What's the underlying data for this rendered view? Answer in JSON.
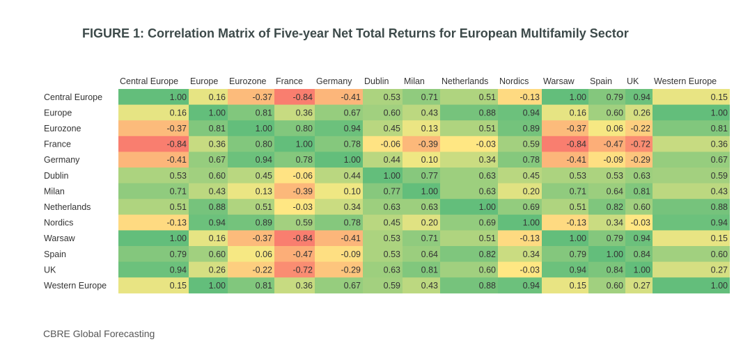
{
  "title": "FIGURE 1: Correlation Matrix of Five-year Net Total Returns for European Multifamily Sector",
  "source": "CBRE Global Forecasting",
  "chart_data": {
    "type": "heatmap",
    "title": "FIGURE 1: Correlation Matrix of Five-year Net Total Returns for European Multifamily Sector",
    "columns": [
      "Central Europe",
      "Europe",
      "Eurozone",
      "France",
      "Germany",
      "Dublin",
      "Milan",
      "Netherlands",
      "Nordics",
      "Warsaw",
      "Spain",
      "UK",
      "Western Europe"
    ],
    "rows": [
      "Central Europe",
      "Europe",
      "Eurozone",
      "France",
      "Germany",
      "Dublin",
      "Milan",
      "Netherlands",
      "Nordics",
      "Warsaw",
      "Spain",
      "UK",
      "Western Europe"
    ],
    "values": [
      [
        1.0,
        0.16,
        -0.37,
        -0.84,
        -0.41,
        0.53,
        0.71,
        0.51,
        -0.13,
        1.0,
        0.79,
        0.94,
        0.15
      ],
      [
        0.16,
        1.0,
        0.81,
        0.36,
        0.67,
        0.6,
        0.43,
        0.88,
        0.94,
        0.16,
        0.6,
        0.26,
        1.0
      ],
      [
        -0.37,
        0.81,
        1.0,
        0.8,
        0.94,
        0.45,
        0.13,
        0.51,
        0.89,
        -0.37,
        0.06,
        -0.22,
        0.81
      ],
      [
        -0.84,
        0.36,
        0.8,
        1.0,
        0.78,
        -0.06,
        -0.39,
        -0.03,
        0.59,
        -0.84,
        -0.47,
        -0.72,
        0.36
      ],
      [
        -0.41,
        0.67,
        0.94,
        0.78,
        1.0,
        0.44,
        0.1,
        0.34,
        0.78,
        -0.41,
        -0.09,
        -0.29,
        0.67
      ],
      [
        0.53,
        0.6,
        0.45,
        -0.06,
        0.44,
        1.0,
        0.77,
        0.63,
        0.45,
        0.53,
        0.53,
        0.63,
        0.59
      ],
      [
        0.71,
        0.43,
        0.13,
        -0.39,
        0.1,
        0.77,
        1.0,
        0.63,
        0.2,
        0.71,
        0.64,
        0.81,
        0.43
      ],
      [
        0.51,
        0.88,
        0.51,
        -0.03,
        0.34,
        0.63,
        0.63,
        1.0,
        0.69,
        0.51,
        0.82,
        0.6,
        0.88
      ],
      [
        -0.13,
        0.94,
        0.89,
        0.59,
        0.78,
        0.45,
        0.2,
        0.69,
        1.0,
        -0.13,
        0.34,
        -0.03,
        0.94
      ],
      [
        1.0,
        0.16,
        -0.37,
        -0.84,
        -0.41,
        0.53,
        0.71,
        0.51,
        -0.13,
        1.0,
        0.79,
        0.94,
        0.15
      ],
      [
        0.79,
        0.6,
        0.06,
        -0.47,
        -0.09,
        0.53,
        0.64,
        0.82,
        0.34,
        0.79,
        1.0,
        0.84,
        0.6
      ],
      [
        0.94,
        0.26,
        -0.22,
        -0.72,
        -0.29,
        0.63,
        0.81,
        0.6,
        -0.03,
        0.94,
        0.84,
        1.0,
        0.27
      ],
      [
        0.15,
        1.0,
        0.81,
        0.36,
        0.67,
        0.59,
        0.43,
        0.88,
        0.94,
        0.15,
        0.6,
        0.27,
        1.0
      ]
    ],
    "color_scale": {
      "low": "#f8696b",
      "mid": "#ffeb84",
      "high": "#63be7b"
    },
    "value_range": [
      -1,
      1
    ],
    "legend": "none",
    "grid": false
  }
}
